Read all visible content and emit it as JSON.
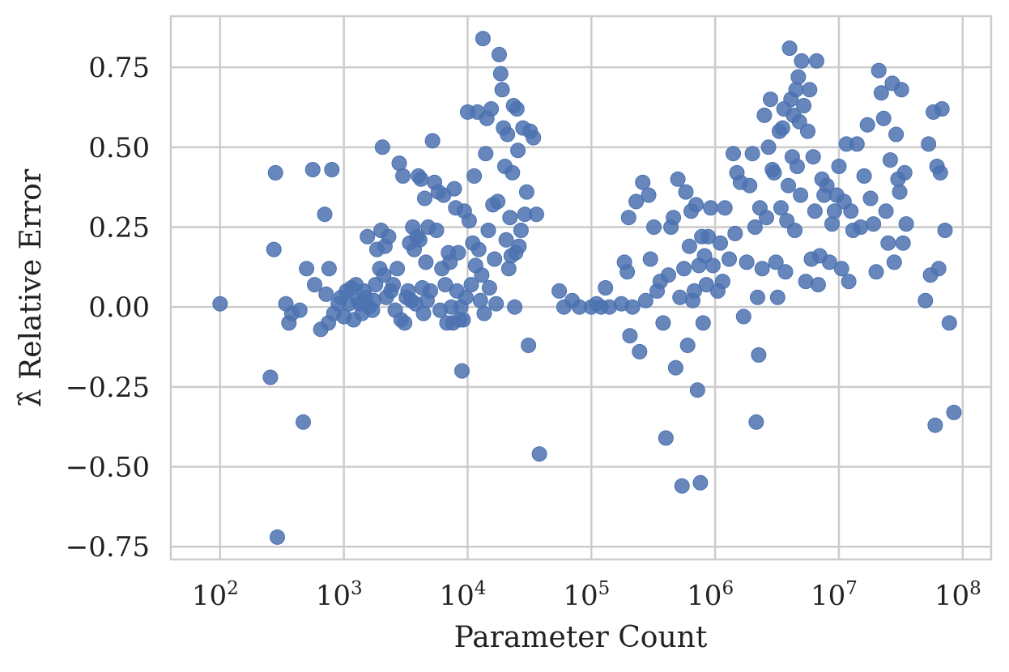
{
  "chart_data": {
    "type": "scatter",
    "title": "",
    "xlabel": "Parameter Count",
    "ylabel": "λ̂ Relative Error",
    "x_scale": "log",
    "xlim": [
      40,
      170000000
    ],
    "ylim": [
      -0.79,
      0.91
    ],
    "x_ticks": [
      100,
      1000,
      10000,
      100000,
      1000000,
      10000000,
      100000000
    ],
    "x_tick_labels": [
      {
        "base": "10",
        "exp": "2"
      },
      {
        "base": "10",
        "exp": "3"
      },
      {
        "base": "10",
        "exp": "4"
      },
      {
        "base": "10",
        "exp": "5"
      },
      {
        "base": "10",
        "exp": "6"
      },
      {
        "base": "10",
        "exp": "7"
      },
      {
        "base": "10",
        "exp": "8"
      }
    ],
    "y_ticks": [
      -0.75,
      -0.5,
      -0.25,
      0.0,
      0.25,
      0.5,
      0.75
    ],
    "y_tick_labels": [
      "−0.75",
      "−0.50",
      "−0.25",
      "0.00",
      "0.25",
      "0.50",
      "0.75"
    ],
    "grid": true,
    "marker_color": "#4c72b0",
    "series": [
      {
        "points": [
          [
            100,
            0.01
          ],
          [
            255,
            -0.22
          ],
          [
            272,
            0.18
          ],
          [
            280,
            0.42
          ],
          [
            290,
            -0.72
          ],
          [
            340,
            0.01
          ],
          [
            360,
            -0.05
          ],
          [
            380,
            -0.02
          ],
          [
            440,
            -0.01
          ],
          [
            470,
            -0.36
          ],
          [
            500,
            0.12
          ],
          [
            560,
            0.43
          ],
          [
            580,
            0.07
          ],
          [
            650,
            -0.07
          ],
          [
            700,
            0.29
          ],
          [
            720,
            0.04
          ],
          [
            750,
            -0.05
          ],
          [
            760,
            0.12
          ],
          [
            800,
            0.43
          ],
          [
            830,
            -0.02
          ],
          [
            900,
            0.01
          ],
          [
            950,
            0.03
          ],
          [
            1000,
            -0.03
          ],
          [
            1050,
            0.05
          ],
          [
            1100,
            0.01
          ],
          [
            1150,
            0.06
          ],
          [
            1200,
            -0.04
          ],
          [
            1250,
            0.07
          ],
          [
            1300,
            0.02
          ],
          [
            1350,
            0.01
          ],
          [
            1400,
            -0.02
          ],
          [
            1450,
            0.05
          ],
          [
            1500,
            0.03
          ],
          [
            1550,
            0.22
          ],
          [
            1600,
            0.0
          ],
          [
            1700,
            -0.01
          ],
          [
            1750,
            0.02
          ],
          [
            1800,
            0.07
          ],
          [
            1850,
            0.18
          ],
          [
            1950,
            0.12
          ],
          [
            2000,
            0.24
          ],
          [
            2050,
            0.5
          ],
          [
            2100,
            0.1
          ],
          [
            2150,
            0.19
          ],
          [
            2200,
            0.03
          ],
          [
            2300,
            0.22
          ],
          [
            2400,
            0.05
          ],
          [
            2500,
            0.07
          ],
          [
            2600,
            -0.01
          ],
          [
            2700,
            0.12
          ],
          [
            2800,
            0.45
          ],
          [
            2900,
            -0.04
          ],
          [
            3000,
            0.41
          ],
          [
            3100,
            -0.05
          ],
          [
            3200,
            0.03
          ],
          [
            3300,
            0.05
          ],
          [
            3400,
            0.2
          ],
          [
            3500,
            0.02
          ],
          [
            3600,
            0.25
          ],
          [
            3700,
            0.18
          ],
          [
            3800,
            0.01
          ],
          [
            3900,
            0.22
          ],
          [
            4000,
            0.41
          ],
          [
            4100,
            0.21
          ],
          [
            4200,
            0.4
          ],
          [
            4300,
            0.06
          ],
          [
            4400,
            -0.02
          ],
          [
            4500,
            0.34
          ],
          [
            4600,
            0.14
          ],
          [
            4700,
            0.02
          ],
          [
            4800,
            0.25
          ],
          [
            5000,
            0.05
          ],
          [
            5200,
            0.52
          ],
          [
            5400,
            0.39
          ],
          [
            5600,
            0.24
          ],
          [
            5800,
            0.36
          ],
          [
            6000,
            -0.01
          ],
          [
            6200,
            0.12
          ],
          [
            6400,
            0.35
          ],
          [
            6600,
            0.07
          ],
          [
            6800,
            -0.05
          ],
          [
            7000,
            0.17
          ],
          [
            7200,
            0.14
          ],
          [
            7400,
            0.0
          ],
          [
            7600,
            -0.05
          ],
          [
            7800,
            0.37
          ],
          [
            8000,
            0.31
          ],
          [
            8200,
            0.05
          ],
          [
            8400,
            0.17
          ],
          [
            8600,
            -0.04
          ],
          [
            8800,
            0.0
          ],
          [
            9000,
            -0.2
          ],
          [
            9200,
            -0.04
          ],
          [
            9400,
            0.3
          ],
          [
            9700,
            0.03
          ],
          [
            10000,
            0.61
          ],
          [
            10300,
            0.27
          ],
          [
            10700,
            0.07
          ],
          [
            11000,
            0.2
          ],
          [
            11300,
            0.41
          ],
          [
            11600,
            0.13
          ],
          [
            12000,
            0.61
          ],
          [
            12300,
            0.18
          ],
          [
            12700,
            0.02
          ],
          [
            13000,
            0.1
          ],
          [
            13300,
            0.84
          ],
          [
            13600,
            -0.02
          ],
          [
            14000,
            0.48
          ],
          [
            14300,
            0.59
          ],
          [
            14700,
            0.24
          ],
          [
            15000,
            0.06
          ],
          [
            15500,
            0.62
          ],
          [
            16000,
            0.32
          ],
          [
            16500,
            0.15
          ],
          [
            17000,
            0.01
          ],
          [
            17500,
            0.33
          ],
          [
            18000,
            0.79
          ],
          [
            18500,
            0.73
          ],
          [
            19000,
            0.68
          ],
          [
            19500,
            0.56
          ],
          [
            20000,
            0.44
          ],
          [
            20500,
            0.21
          ],
          [
            21000,
            0.54
          ],
          [
            21500,
            0.12
          ],
          [
            22000,
            0.28
          ],
          [
            22500,
            0.16
          ],
          [
            23000,
            0.42
          ],
          [
            23500,
            0.63
          ],
          [
            24000,
            0.0
          ],
          [
            24500,
            0.17
          ],
          [
            25000,
            0.62
          ],
          [
            25500,
            0.49
          ],
          [
            26000,
            0.19
          ],
          [
            27000,
            0.24
          ],
          [
            28000,
            0.56
          ],
          [
            29000,
            0.29
          ],
          [
            30000,
            0.36
          ],
          [
            31000,
            -0.12
          ],
          [
            32000,
            0.55
          ],
          [
            34000,
            0.53
          ],
          [
            36000,
            0.29
          ],
          [
            38000,
            -0.46
          ],
          [
            55000,
            0.05
          ],
          [
            60000,
            0.0
          ],
          [
            70000,
            0.02
          ],
          [
            80000,
            0.0
          ],
          [
            100000,
            0.0
          ],
          [
            110000,
            0.01
          ],
          [
            120000,
            0.0
          ],
          [
            130000,
            0.06
          ],
          [
            140000,
            0.0
          ],
          [
            175000,
            0.01
          ],
          [
            185000,
            0.14
          ],
          [
            195000,
            0.11
          ],
          [
            200000,
            0.28
          ],
          [
            205000,
            -0.09
          ],
          [
            215000,
            0.0
          ],
          [
            230000,
            0.33
          ],
          [
            245000,
            -0.14
          ],
          [
            260000,
            0.39
          ],
          [
            275000,
            0.02
          ],
          [
            290000,
            0.35
          ],
          [
            300000,
            0.15
          ],
          [
            320000,
            0.25
          ],
          [
            340000,
            0.05
          ],
          [
            360000,
            0.08
          ],
          [
            380000,
            -0.05
          ],
          [
            400000,
            -0.41
          ],
          [
            420000,
            0.1
          ],
          [
            440000,
            0.25
          ],
          [
            460000,
            0.28
          ],
          [
            480000,
            -0.19
          ],
          [
            500000,
            0.4
          ],
          [
            520000,
            0.03
          ],
          [
            540000,
            -0.56
          ],
          [
            560000,
            0.12
          ],
          [
            580000,
            0.36
          ],
          [
            600000,
            -0.12
          ],
          [
            620000,
            0.19
          ],
          [
            640000,
            0.3
          ],
          [
            660000,
            0.02
          ],
          [
            680000,
            0.05
          ],
          [
            700000,
            0.32
          ],
          [
            720000,
            -0.26
          ],
          [
            740000,
            0.13
          ],
          [
            760000,
            -0.55
          ],
          [
            780000,
            0.22
          ],
          [
            800000,
            -0.05
          ],
          [
            820000,
            0.16
          ],
          [
            850000,
            0.07
          ],
          [
            880000,
            0.22
          ],
          [
            920000,
            0.31
          ],
          [
            960000,
            0.13
          ],
          [
            1050000,
            0.05
          ],
          [
            1100000,
            0.2
          ],
          [
            1150000,
            0.08
          ],
          [
            1200000,
            0.31
          ],
          [
            1300000,
            0.15
          ],
          [
            1400000,
            0.48
          ],
          [
            1450000,
            0.23
          ],
          [
            1500000,
            0.42
          ],
          [
            1600000,
            0.39
          ],
          [
            1700000,
            -0.03
          ],
          [
            1800000,
            0.14
          ],
          [
            1900000,
            0.38
          ],
          [
            2000000,
            0.48
          ],
          [
            2100000,
            0.25
          ],
          [
            2150000,
            -0.36
          ],
          [
            2200000,
            0.03
          ],
          [
            2250000,
            -0.15
          ],
          [
            2300000,
            0.31
          ],
          [
            2400000,
            0.12
          ],
          [
            2500000,
            0.6
          ],
          [
            2600000,
            0.28
          ],
          [
            2700000,
            0.5
          ],
          [
            2800000,
            0.65
          ],
          [
            2900000,
            0.43
          ],
          [
            3000000,
            0.42
          ],
          [
            3100000,
            0.14
          ],
          [
            3200000,
            0.03
          ],
          [
            3300000,
            0.55
          ],
          [
            3400000,
            0.31
          ],
          [
            3500000,
            0.56
          ],
          [
            3600000,
            0.62
          ],
          [
            3700000,
            0.11
          ],
          [
            3800000,
            0.27
          ],
          [
            3900000,
            0.38
          ],
          [
            4000000,
            0.81
          ],
          [
            4100000,
            0.65
          ],
          [
            4200000,
            0.47
          ],
          [
            4300000,
            0.6
          ],
          [
            4400000,
            0.24
          ],
          [
            4500000,
            0.68
          ],
          [
            4600000,
            0.44
          ],
          [
            4700000,
            0.72
          ],
          [
            4800000,
            0.58
          ],
          [
            4900000,
            0.35
          ],
          [
            5000000,
            0.77
          ],
          [
            5200000,
            0.63
          ],
          [
            5400000,
            0.08
          ],
          [
            5600000,
            0.55
          ],
          [
            5800000,
            0.68
          ],
          [
            6000000,
            0.15
          ],
          [
            6200000,
            0.47
          ],
          [
            6400000,
            0.3
          ],
          [
            6600000,
            0.77
          ],
          [
            6800000,
            0.07
          ],
          [
            7000000,
            0.16
          ],
          [
            7300000,
            0.4
          ],
          [
            7600000,
            0.35
          ],
          [
            8000000,
            0.38
          ],
          [
            8400000,
            0.14
          ],
          [
            8800000,
            0.26
          ],
          [
            9200000,
            0.3
          ],
          [
            9600000,
            0.35
          ],
          [
            10000000,
            0.44
          ],
          [
            10500000,
            0.12
          ],
          [
            11000000,
            0.33
          ],
          [
            11500000,
            0.51
          ],
          [
            12000000,
            0.08
          ],
          [
            12500000,
            0.3
          ],
          [
            13000000,
            0.24
          ],
          [
            14000000,
            0.51
          ],
          [
            15000000,
            0.25
          ],
          [
            16000000,
            0.41
          ],
          [
            17000000,
            0.57
          ],
          [
            18000000,
            0.34
          ],
          [
            19000000,
            0.26
          ],
          [
            20000000,
            0.11
          ],
          [
            21000000,
            0.74
          ],
          [
            22000000,
            0.67
          ],
          [
            23000000,
            0.59
          ],
          [
            24000000,
            0.3
          ],
          [
            25000000,
            0.2
          ],
          [
            26000000,
            0.46
          ],
          [
            27000000,
            0.7
          ],
          [
            28000000,
            0.14
          ],
          [
            29000000,
            0.54
          ],
          [
            30000000,
            0.4
          ],
          [
            31000000,
            0.36
          ],
          [
            32000000,
            0.68
          ],
          [
            33000000,
            0.2
          ],
          [
            34000000,
            0.42
          ],
          [
            35000000,
            0.26
          ],
          [
            50000000,
            0.02
          ],
          [
            53000000,
            0.51
          ],
          [
            55000000,
            0.1
          ],
          [
            58000000,
            0.61
          ],
          [
            60000000,
            -0.37
          ],
          [
            62000000,
            0.44
          ],
          [
            64000000,
            0.12
          ],
          [
            66000000,
            0.42
          ],
          [
            68000000,
            0.62
          ],
          [
            72000000,
            0.24
          ],
          [
            78000000,
            -0.05
          ],
          [
            85000000,
            -0.33
          ]
        ]
      }
    ]
  }
}
